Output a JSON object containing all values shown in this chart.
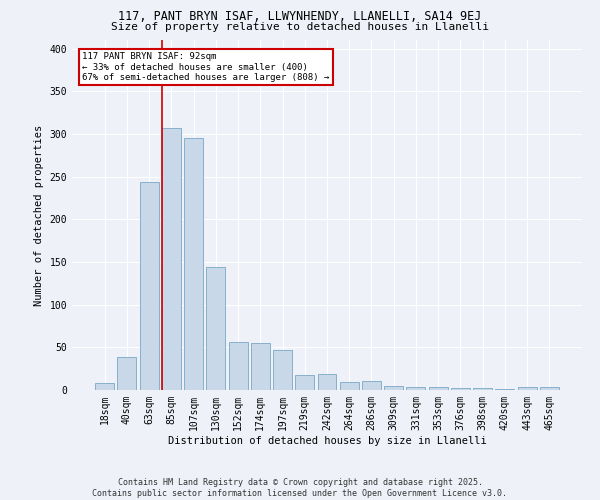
{
  "title1": "117, PANT BRYN ISAF, LLWYNHENDY, LLANELLI, SA14 9EJ",
  "title2": "Size of property relative to detached houses in Llanelli",
  "xlabel": "Distribution of detached houses by size in Llanelli",
  "ylabel": "Number of detached properties",
  "bar_color": "#c8d8e8",
  "bar_edge_color": "#7aa8c8",
  "categories": [
    "18sqm",
    "40sqm",
    "63sqm",
    "85sqm",
    "107sqm",
    "130sqm",
    "152sqm",
    "174sqm",
    "197sqm",
    "219sqm",
    "242sqm",
    "264sqm",
    "286sqm",
    "309sqm",
    "331sqm",
    "353sqm",
    "376sqm",
    "398sqm",
    "420sqm",
    "443sqm",
    "465sqm"
  ],
  "values": [
    8,
    39,
    244,
    307,
    295,
    144,
    56,
    55,
    47,
    18,
    19,
    9,
    11,
    5,
    3,
    4,
    2,
    2,
    1,
    3,
    3
  ],
  "vline_x_idx": 3,
  "vline_color": "#cc0000",
  "annotation_text": "117 PANT BRYN ISAF: 92sqm\n← 33% of detached houses are smaller (400)\n67% of semi-detached houses are larger (808) →",
  "annotation_box_color": "#ffffff",
  "annotation_box_edge": "#cc0000",
  "ylim": [
    0,
    410
  ],
  "yticks": [
    0,
    50,
    100,
    150,
    200,
    250,
    300,
    350,
    400
  ],
  "footnote": "Contains HM Land Registry data © Crown copyright and database right 2025.\nContains public sector information licensed under the Open Government Licence v3.0.",
  "bg_color": "#eef2f8",
  "plot_bg_color": "#eef2f8",
  "title1_fontsize": 8.5,
  "title2_fontsize": 8,
  "axis_fontsize": 7,
  "ylabel_fontsize": 7.5,
  "xlabel_fontsize": 7.5,
  "footnote_fontsize": 6
}
